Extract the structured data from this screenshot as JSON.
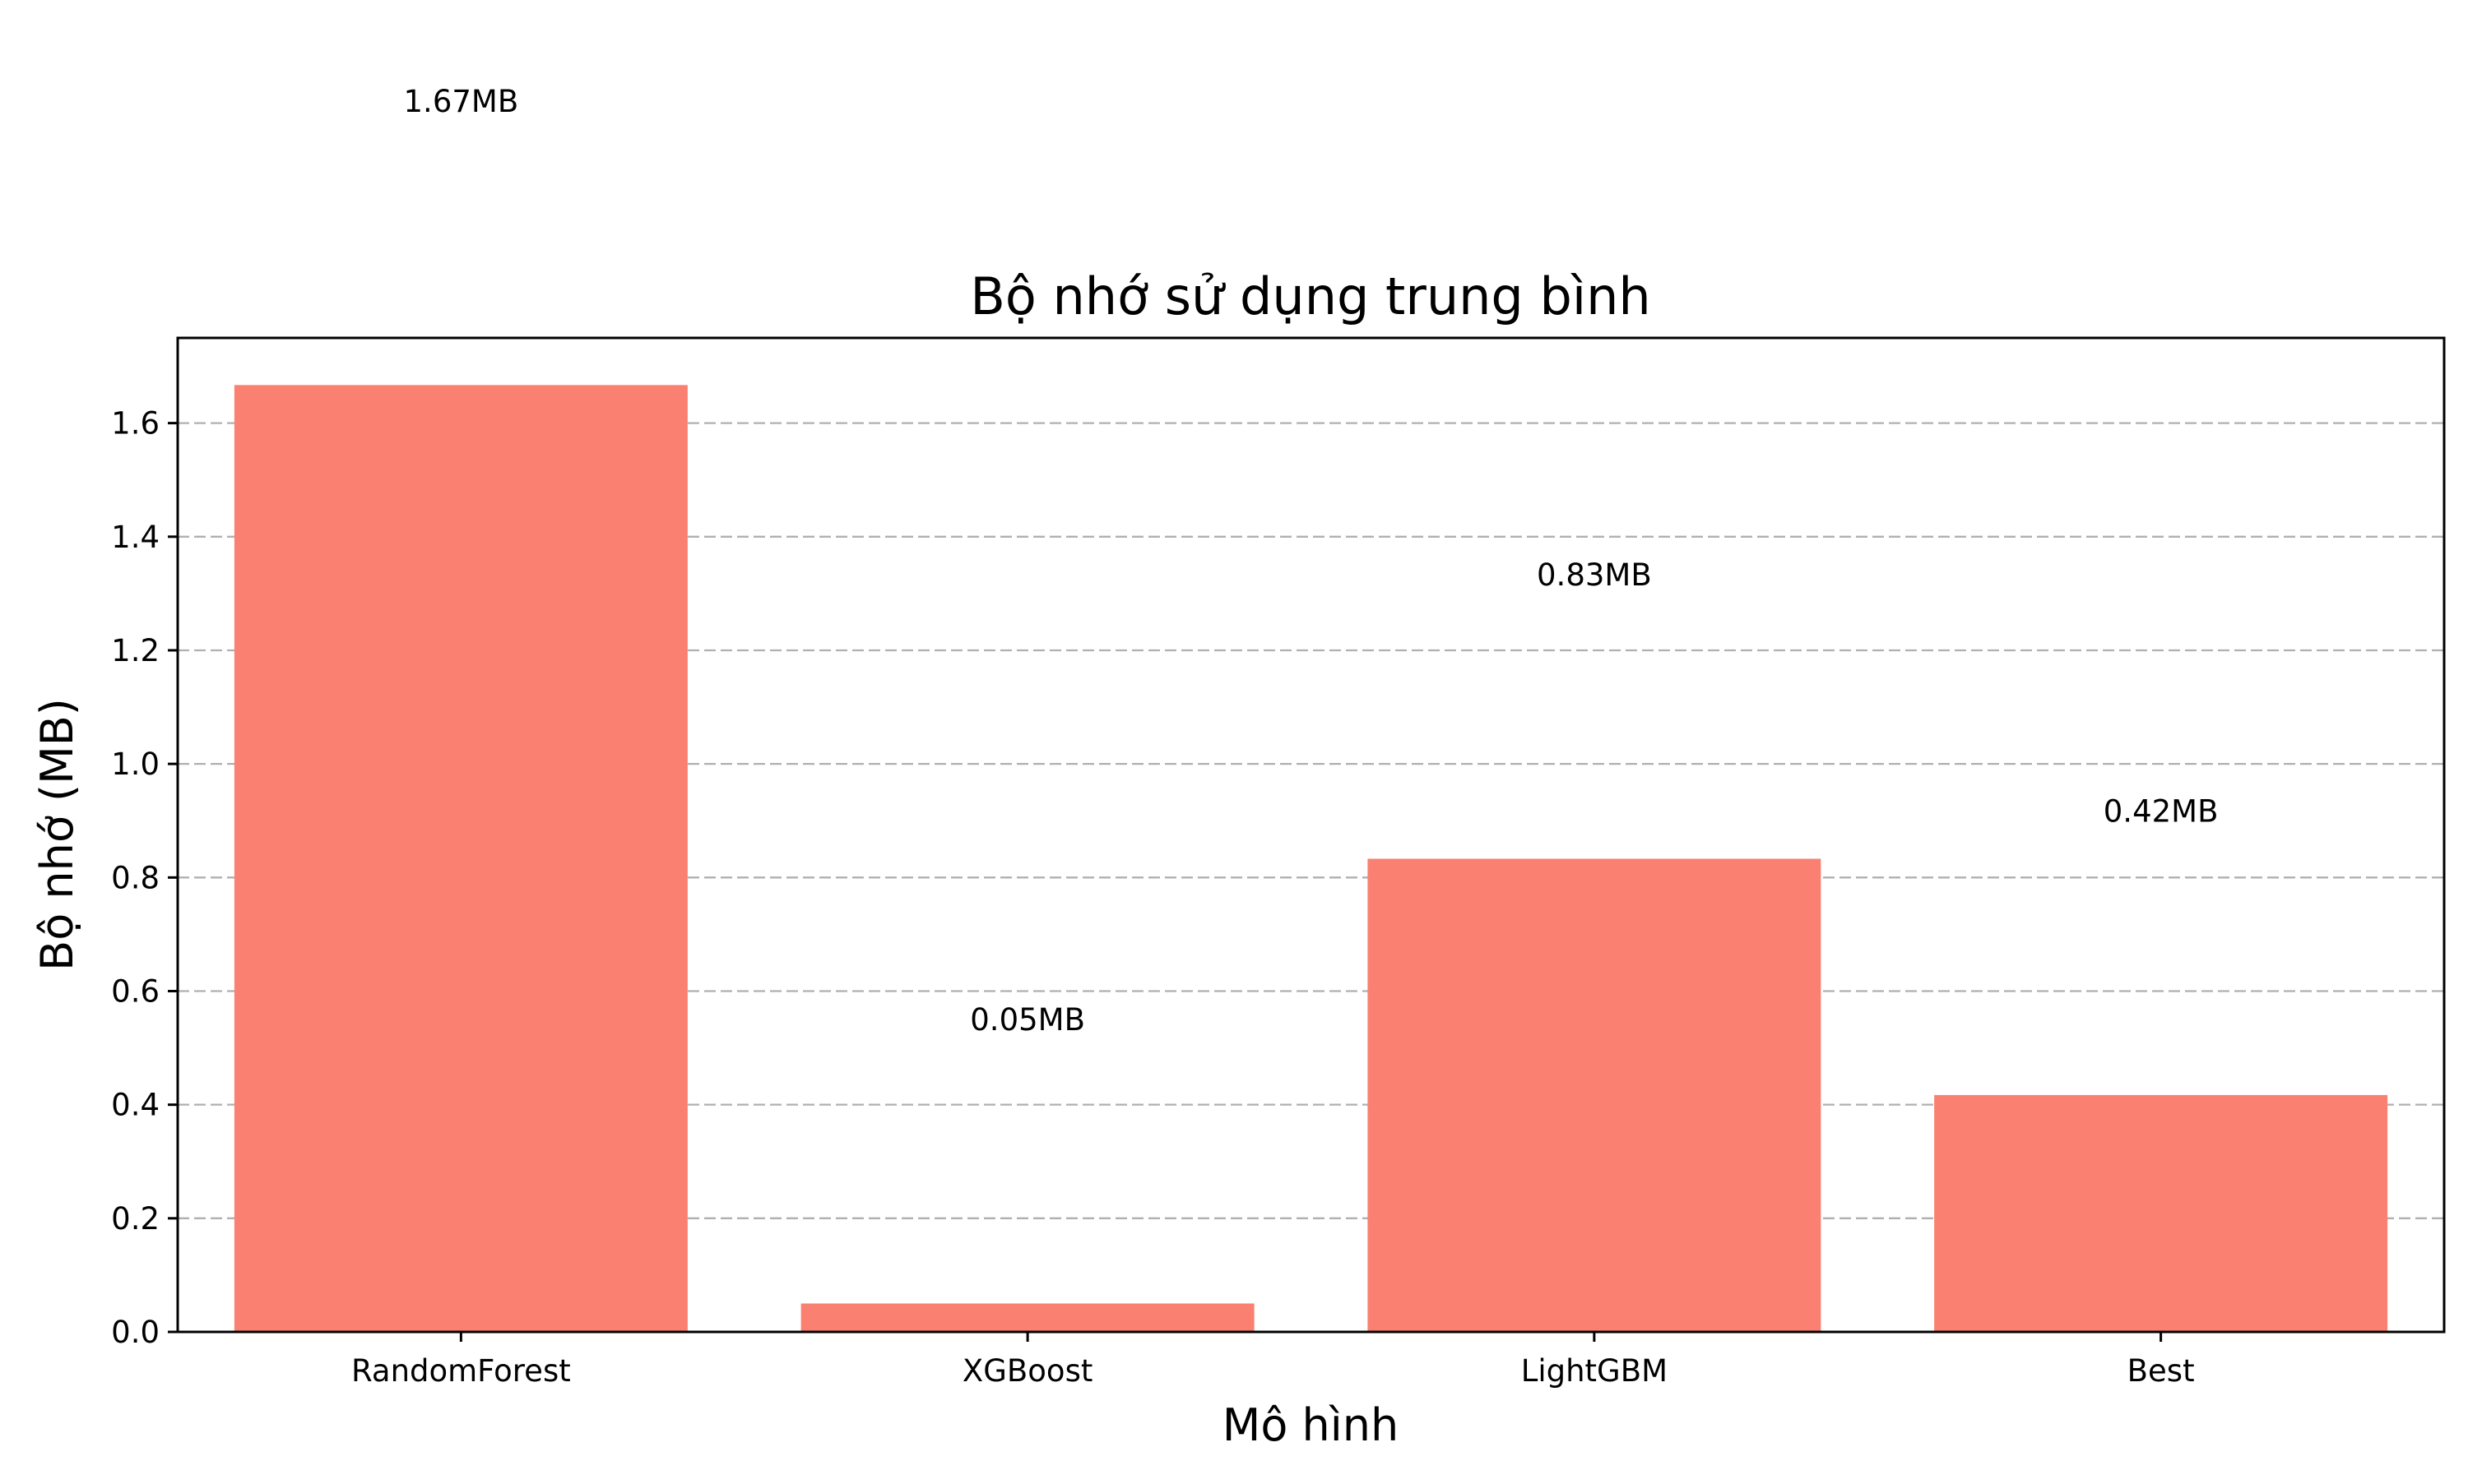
{
  "chart_data": {
    "type": "bar",
    "title": "Bộ nhớ sử dụng trung bình",
    "xlabel": "Mô hình",
    "ylabel": "Bộ nhớ (MB)",
    "categories": [
      "RandomForest",
      "XGBoost",
      "LightGBM",
      "Best"
    ],
    "values": [
      1.667,
      0.05,
      0.833,
      0.417
    ],
    "data_labels": [
      "1.67MB",
      "0.05MB",
      "0.83MB",
      "0.42MB"
    ],
    "ylim": [
      0,
      1.75
    ],
    "yticks": [
      "0.0",
      "0.2",
      "0.4",
      "0.6",
      "0.8",
      "1.0",
      "1.2",
      "1.4",
      "1.6"
    ],
    "grid": "y-dashed",
    "bar_color": "#fa8072",
    "grid_color": "#b0b0b0"
  }
}
